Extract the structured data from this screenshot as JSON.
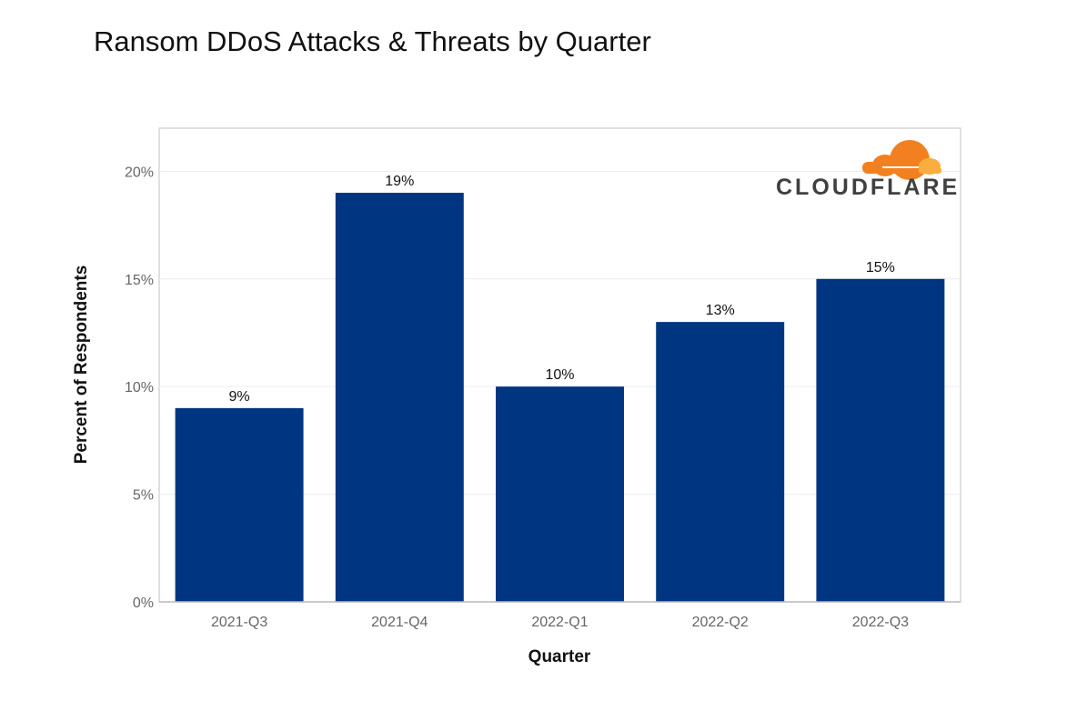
{
  "chart_data": {
    "type": "bar",
    "title": "Ransom DDoS Attacks & Threats by Quarter",
    "xlabel": "Quarter",
    "ylabel": "Percent of Respondents",
    "categories": [
      "2021-Q3",
      "2021-Q4",
      "2022-Q1",
      "2022-Q2",
      "2022-Q3"
    ],
    "values": [
      9,
      19,
      10,
      13,
      15
    ],
    "data_labels": [
      "9%",
      "19%",
      "10%",
      "13%",
      "15%"
    ],
    "yticks": [
      0,
      5,
      10,
      15,
      20
    ],
    "ytick_labels": [
      "0%",
      "5%",
      "10%",
      "15%",
      "20%"
    ],
    "ylim": [
      0,
      22
    ],
    "grid": true,
    "legend": "none",
    "bar_color": "#003681"
  },
  "logo": {
    "text": "CLOUDFLARE",
    "colors": [
      "#f38020",
      "#faae40",
      "#404041"
    ],
    "placement": "top-right"
  }
}
